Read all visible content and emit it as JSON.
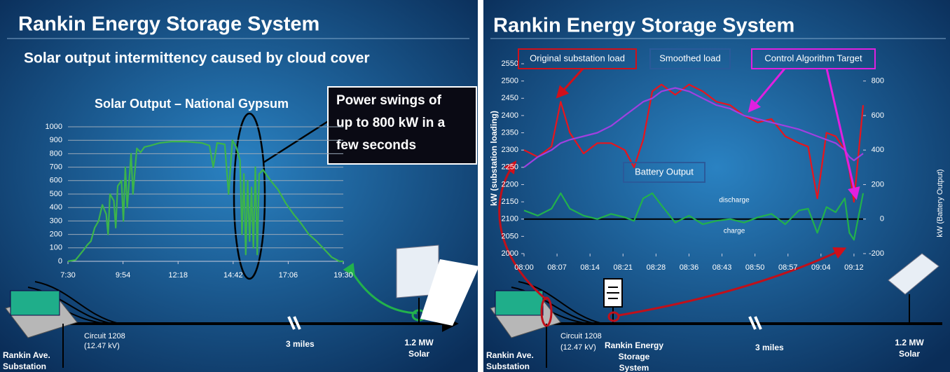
{
  "slides": [
    {
      "title": "Rankin Energy Storage System",
      "subtitle": "Solar output intermittency caused by cloud cover",
      "callout": [
        "Power swings of",
        "up to 800 kW in a",
        "few seconds"
      ],
      "substation": [
        "Rankin Ave.",
        "Substation"
      ],
      "circuit": [
        "Circuit 1208",
        "(12.47 kV)"
      ],
      "distance": "3 miles",
      "solar": [
        "1.2 MW",
        "Solar"
      ]
    },
    {
      "title": "Rankin Energy Storage System",
      "substation": [
        "Rankin Ave.",
        "Substation"
      ],
      "circuit": [
        "Circuit 1208",
        "(12.47 kV)"
      ],
      "storage": [
        "Rankin Energy",
        "Storage",
        "System"
      ],
      "distance": "3 miles",
      "solar": [
        "1.2 MW",
        "Solar"
      ]
    }
  ],
  "chart_data": [
    {
      "type": "line",
      "title": "Solar Output – National Gypsum",
      "color": "#3cb44b",
      "grid": true,
      "x": [
        450,
        470,
        490,
        500,
        510,
        520,
        530,
        540,
        550,
        555,
        560,
        570,
        575,
        580,
        590,
        595,
        600,
        605,
        615,
        620,
        630,
        640,
        650,
        665,
        690,
        720,
        760,
        800,
        820,
        830,
        840,
        860,
        870,
        880,
        890,
        900,
        905,
        910,
        915,
        920,
        925,
        930,
        935,
        940,
        945,
        950,
        960,
        980,
        1000,
        1020,
        1040,
        1060,
        1080,
        1100,
        1120,
        1140,
        1160,
        1170
      ],
      "values": [
        0,
        10,
        80,
        120,
        150,
        250,
        300,
        420,
        350,
        200,
        500,
        450,
        250,
        560,
        600,
        300,
        700,
        400,
        800,
        500,
        840,
        810,
        850,
        860,
        880,
        890,
        890,
        880,
        860,
        700,
        880,
        870,
        500,
        900,
        850,
        750,
        200,
        650,
        50,
        600,
        150,
        550,
        100,
        700,
        50,
        650,
        680,
        600,
        530,
        430,
        350,
        280,
        200,
        150,
        90,
        30,
        0,
        0
      ],
      "xlim": [
        450,
        1170
      ],
      "xticks": [
        {
          "value": 450,
          "label": "7:30"
        },
        {
          "value": 594,
          "label": "9:54"
        },
        {
          "value": 738,
          "label": "12:18"
        },
        {
          "value": 882,
          "label": "14:42"
        },
        {
          "value": 1026,
          "label": "17:06"
        },
        {
          "value": 1170,
          "label": "19:30"
        }
      ],
      "ylim": [
        0,
        1000
      ],
      "yticks": [
        0,
        100,
        200,
        300,
        400,
        500,
        600,
        700,
        800,
        900,
        1000
      ]
    },
    {
      "type": "line",
      "grid": false,
      "ylabel": "kW (substation loading)",
      "y2label": "kW (Battery Output)",
      "annotations": [
        "Control Algorithm Target",
        "discharge",
        "charge"
      ],
      "x": [
        480,
        483,
        486,
        488,
        490,
        493,
        496,
        499,
        502,
        504,
        506,
        508,
        510,
        513,
        516,
        519,
        522,
        525,
        528,
        531,
        534,
        537,
        540,
        542,
        544,
        546,
        548,
        550,
        551,
        552,
        554
      ],
      "series": [
        {
          "name": "Original substation load",
          "color": "#e8141c",
          "values": [
            2300,
            2280,
            2310,
            2440,
            2350,
            2290,
            2320,
            2320,
            2300,
            2250,
            2330,
            2470,
            2490,
            2460,
            2490,
            2470,
            2440,
            2430,
            2400,
            2380,
            2390,
            2340,
            2320,
            2310,
            2160,
            2350,
            2340,
            2300,
            2240,
            2150,
            2430
          ]
        },
        {
          "name": "Smoothed load",
          "color": "#a040e0",
          "values": [
            2250,
            2280,
            2300,
            2320,
            2330,
            2340,
            2350,
            2370,
            2400,
            2420,
            2440,
            2450,
            2470,
            2480,
            2470,
            2450,
            2430,
            2420,
            2400,
            2390,
            2380,
            2370,
            2360,
            2350,
            2340,
            2330,
            2320,
            2300,
            2280,
            2270,
            2290
          ]
        },
        {
          "name": "Battery Output",
          "color": "#22b14c",
          "axis": "y2",
          "values": [
            50,
            20,
            60,
            150,
            60,
            20,
            0,
            30,
            10,
            -10,
            120,
            150,
            80,
            -20,
            20,
            -30,
            -10,
            0,
            -20,
            10,
            30,
            -30,
            50,
            60,
            -80,
            70,
            40,
            120,
            -80,
            -120,
            150
          ]
        }
      ],
      "xlim": [
        480,
        554
      ],
      "xticks": [
        {
          "value": 480,
          "label": "08:00"
        },
        {
          "value": 487.2,
          "label": "08:07"
        },
        {
          "value": 494.4,
          "label": "08:14"
        },
        {
          "value": 501.6,
          "label": "08:21"
        },
        {
          "value": 508.8,
          "label": "08:28"
        },
        {
          "value": 516,
          "label": "08:36"
        },
        {
          "value": 523.2,
          "label": "08:43"
        },
        {
          "value": 530.4,
          "label": "08:50"
        },
        {
          "value": 537.6,
          "label": "08:57"
        },
        {
          "value": 544.8,
          "label": "09:04"
        },
        {
          "value": 552,
          "label": "09:12"
        }
      ],
      "ylim": [
        2000,
        2550
      ],
      "yticks": [
        2000,
        2050,
        2100,
        2150,
        2200,
        2250,
        2300,
        2350,
        2400,
        2450,
        2500,
        2550
      ],
      "y2lim": [
        -200,
        900
      ],
      "y2ticks": [
        -200,
        0,
        200,
        400,
        600,
        800
      ]
    }
  ]
}
